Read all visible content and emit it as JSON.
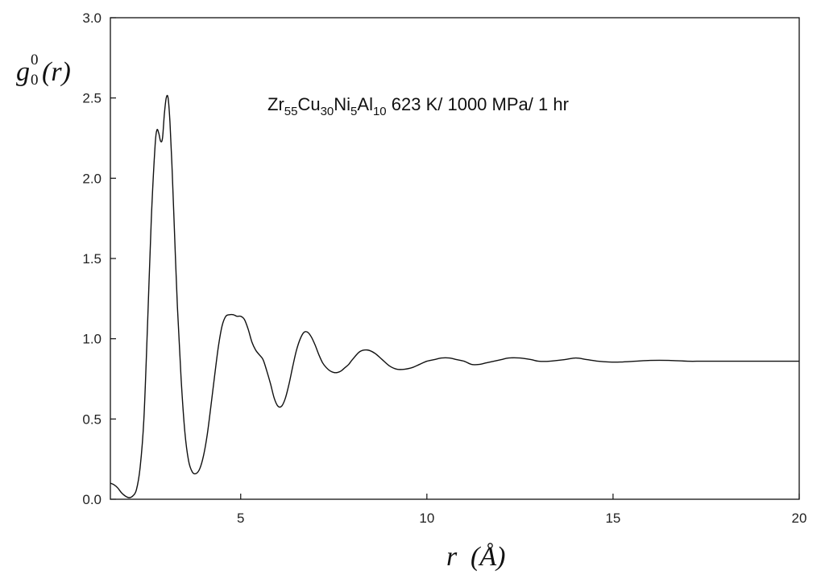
{
  "chart_data": {
    "type": "line",
    "title": "",
    "annotation": {
      "parts": [
        {
          "text": "Zr",
          "sub": false
        },
        {
          "text": "55",
          "sub": true
        },
        {
          "text": "Cu",
          "sub": false
        },
        {
          "text": "30",
          "sub": true
        },
        {
          "text": "Ni",
          "sub": false
        },
        {
          "text": "5",
          "sub": true
        },
        {
          "text": "Al",
          "sub": false
        },
        {
          "text": "10",
          "sub": true
        },
        {
          "text": " 623 K/ 1000 MPa/ 1 hr",
          "sub": false
        }
      ]
    },
    "ylabel": {
      "base": "g",
      "sup": "0",
      "sub": "0",
      "arg": "(r)"
    },
    "xlabel": {
      "var": "r",
      "unit": "(Å)"
    },
    "xlim": [
      1.5,
      20
    ],
    "ylim": [
      0,
      3.0
    ],
    "x_ticks": [
      5,
      10,
      15,
      20
    ],
    "x_tick_labels": [
      "5",
      "10",
      "15",
      "20"
    ],
    "y_ticks": [
      0,
      0.5,
      1.0,
      1.5,
      2.0,
      2.5,
      3.0
    ],
    "y_tick_labels": [
      "0.0",
      "0.5",
      "1.0",
      "1.5",
      "2.0",
      "2.5",
      "3.0"
    ],
    "grid": false,
    "series": [
      {
        "x": [
          1.5,
          1.6,
          1.7,
          1.8,
          1.9,
          2.0,
          2.1,
          2.2,
          2.3,
          2.4,
          2.5,
          2.6,
          2.7,
          2.75,
          2.8,
          2.85,
          2.9,
          2.95,
          3.0,
          3.05,
          3.1,
          3.15,
          3.2,
          3.3,
          3.4,
          3.5,
          3.6,
          3.7,
          3.8,
          3.9,
          4.0,
          4.1,
          4.2,
          4.3,
          4.4,
          4.5,
          4.6,
          4.7,
          4.8,
          4.9,
          5.0,
          5.1,
          5.2,
          5.3,
          5.4,
          5.5,
          5.6,
          5.7,
          5.8,
          5.9,
          6.0,
          6.1,
          6.2,
          6.3,
          6.4,
          6.5,
          6.6,
          6.7,
          6.8,
          6.9,
          7.0,
          7.1,
          7.2,
          7.3,
          7.4,
          7.5,
          7.6,
          7.7,
          7.8,
          7.9,
          8.0,
          8.2,
          8.4,
          8.6,
          8.8,
          9.0,
          9.2,
          9.4,
          9.6,
          9.8,
          10.0,
          10.2,
          10.4,
          10.6,
          10.8,
          11.0,
          11.2,
          11.4,
          11.6,
          11.8,
          12.0,
          12.2,
          12.5,
          12.8,
          13.0,
          13.3,
          13.7,
          14.0,
          14.3,
          14.6,
          14.9,
          15.2,
          15.6,
          16.0,
          16.5,
          17.0,
          17.4,
          18.0,
          18.5,
          19.0,
          19.5,
          20.0
        ],
        "y": [
          0.1,
          0.09,
          0.07,
          0.04,
          0.02,
          0.01,
          0.02,
          0.06,
          0.2,
          0.5,
          1.1,
          1.75,
          2.2,
          2.3,
          2.28,
          2.23,
          2.25,
          2.4,
          2.5,
          2.5,
          2.35,
          2.1,
          1.8,
          1.2,
          0.75,
          0.42,
          0.24,
          0.17,
          0.16,
          0.19,
          0.27,
          0.4,
          0.58,
          0.77,
          0.95,
          1.08,
          1.14,
          1.15,
          1.15,
          1.14,
          1.14,
          1.12,
          1.06,
          0.98,
          0.93,
          0.9,
          0.87,
          0.8,
          0.72,
          0.63,
          0.58,
          0.58,
          0.63,
          0.72,
          0.83,
          0.93,
          1.0,
          1.04,
          1.04,
          1.01,
          0.96,
          0.9,
          0.85,
          0.82,
          0.8,
          0.79,
          0.79,
          0.8,
          0.82,
          0.84,
          0.87,
          0.92,
          0.93,
          0.91,
          0.87,
          0.83,
          0.81,
          0.81,
          0.82,
          0.84,
          0.86,
          0.87,
          0.88,
          0.88,
          0.87,
          0.86,
          0.84,
          0.84,
          0.85,
          0.86,
          0.87,
          0.88,
          0.88,
          0.87,
          0.86,
          0.86,
          0.87,
          0.88,
          0.87,
          0.86,
          0.855,
          0.855,
          0.86,
          0.865,
          0.865,
          0.86,
          0.86,
          0.86,
          0.86,
          0.86,
          0.86,
          0.86
        ]
      }
    ]
  },
  "colors": {
    "line": "#111111",
    "axis": "#111111",
    "background": "#ffffff"
  }
}
